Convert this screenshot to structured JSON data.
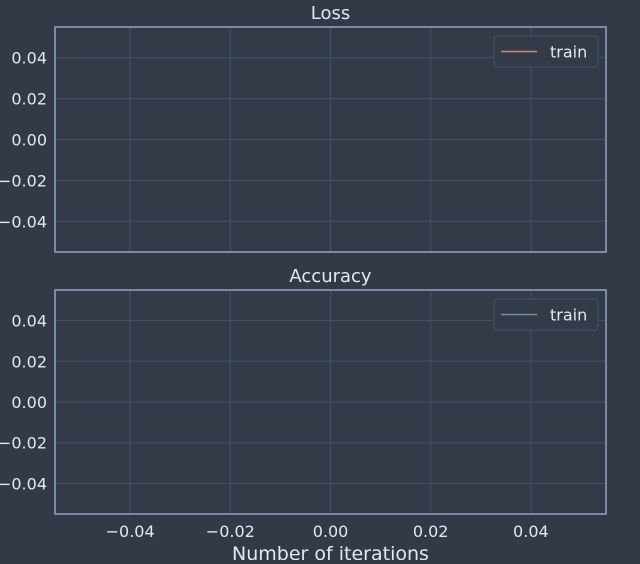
{
  "theme": {
    "background": "#323a48",
    "axes_background": "#333b49",
    "spine_color": "#8f9db8",
    "grid_color": "#415062",
    "text_color": "#e4e8ef",
    "loss_color": "#c98a73",
    "accuracy_color": "#6f8fa6"
  },
  "chart_data": [
    {
      "id": "loss",
      "type": "line",
      "title": "Loss",
      "xlabel": "",
      "ylabel": "",
      "xlim": [
        -0.055,
        0.055
      ],
      "ylim": [
        -0.055,
        0.055
      ],
      "xticks": [
        -0.04,
        -0.02,
        0.0,
        0.02,
        0.04
      ],
      "yticks": [
        0.04,
        0.02,
        0.0,
        -0.02,
        -0.04
      ],
      "show_x_tick_labels": false,
      "grid": true,
      "legend_position": "top-right",
      "series": [
        {
          "name": "train",
          "color": "#c98a73",
          "x": [],
          "y": []
        }
      ]
    },
    {
      "id": "accuracy",
      "type": "line",
      "title": "Accuracy",
      "xlabel": "Number of iterations",
      "ylabel": "",
      "xlim": [
        -0.055,
        0.055
      ],
      "ylim": [
        -0.055,
        0.055
      ],
      "xticks": [
        -0.04,
        -0.02,
        0.0,
        0.02,
        0.04
      ],
      "yticks": [
        0.04,
        0.02,
        0.0,
        -0.02,
        -0.04
      ],
      "show_x_tick_labels": true,
      "grid": true,
      "legend_position": "top-right",
      "series": [
        {
          "name": "train",
          "color": "#6f8fa6",
          "x": [],
          "y": []
        }
      ]
    }
  ]
}
